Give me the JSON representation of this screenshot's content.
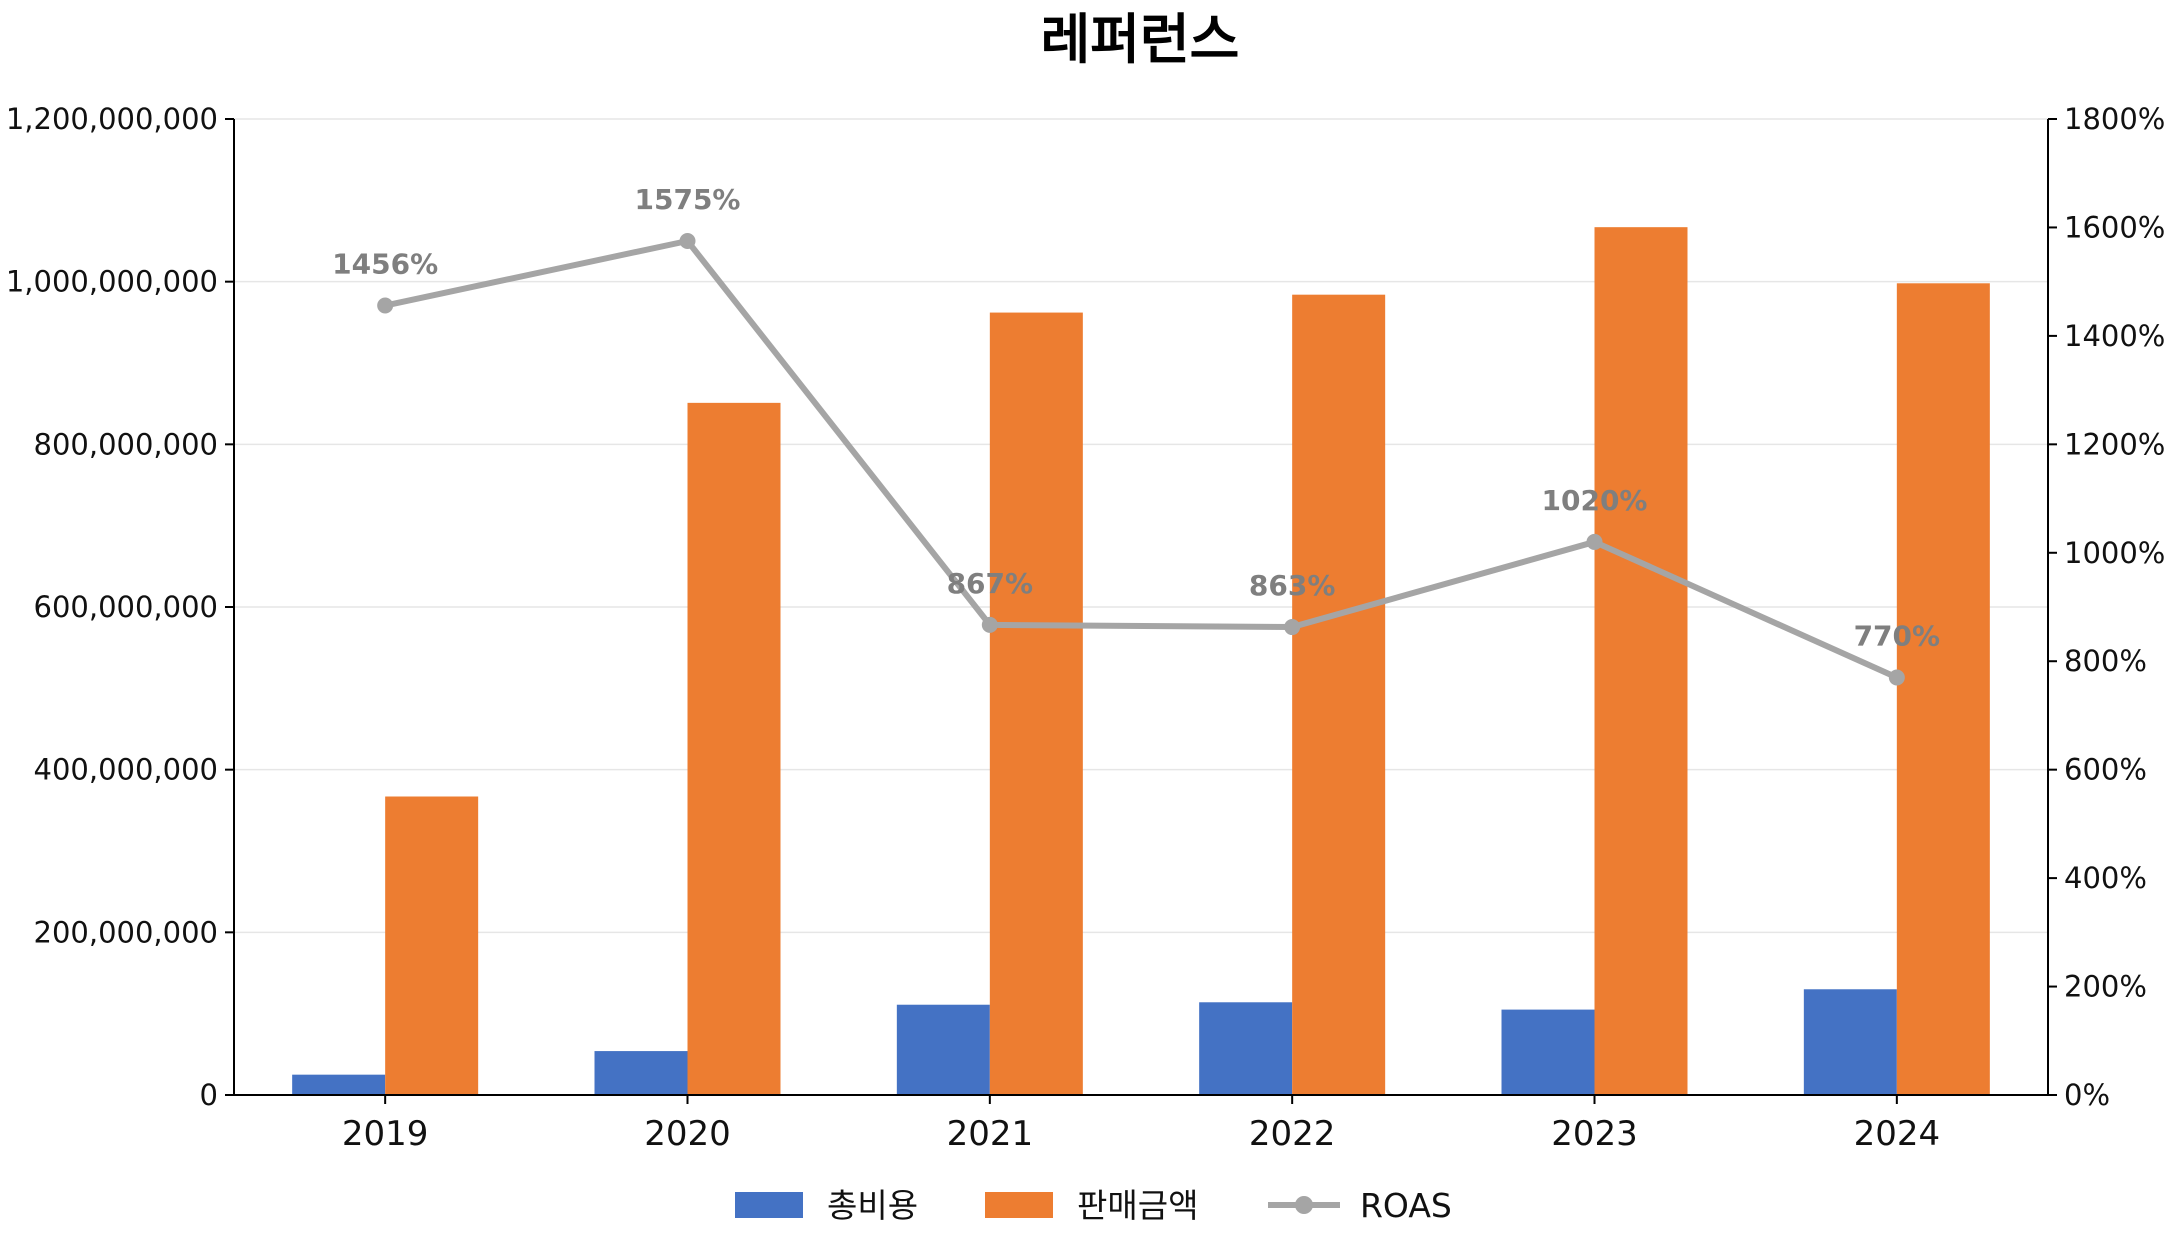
{
  "chart_data": {
    "type": "bar",
    "title": "레퍼런스",
    "categories": [
      "2019",
      "2020",
      "2021",
      "2022",
      "2023",
      "2024"
    ],
    "series": [
      {
        "name": "총비용",
        "type": "bar",
        "axis": "left",
        "color": "#4472C4",
        "values": [
          25000000,
          54000000,
          111000000,
          114000000,
          105000000,
          130000000
        ]
      },
      {
        "name": "판매금액",
        "type": "bar",
        "axis": "right-none",
        "color": "#ED7D31",
        "values": [
          367000000,
          851000000,
          962000000,
          984000000,
          1067000000,
          998000000
        ]
      },
      {
        "name": "ROAS",
        "type": "line",
        "axis": "right",
        "color": "#A5A5A5",
        "values": [
          1456,
          1575,
          867,
          863,
          1020,
          770
        ],
        "labels": [
          "1456%",
          "1575%",
          "867%",
          "863%",
          "1020%",
          "770%"
        ]
      }
    ],
    "y_left": {
      "ylim": [
        0,
        1200000000
      ],
      "ticks": [
        0,
        200000000,
        400000000,
        600000000,
        800000000,
        1000000000,
        1200000000
      ],
      "tick_labels": [
        "0",
        "200,000,000",
        "400,000,000",
        "600,000,000",
        "800,000,000",
        "1,000,000,000",
        "1,200,000,000"
      ]
    },
    "y_right": {
      "ylim": [
        0,
        1800
      ],
      "ticks": [
        0,
        200,
        400,
        600,
        800,
        1000,
        1200,
        1400,
        1600,
        1800
      ],
      "tick_labels": [
        "0%",
        "200%",
        "400%",
        "600%",
        "800%",
        "1000%",
        "1200%",
        "1400%",
        "1600%",
        "1800%"
      ]
    },
    "grid": true,
    "legend_placement": "bottom-center"
  }
}
